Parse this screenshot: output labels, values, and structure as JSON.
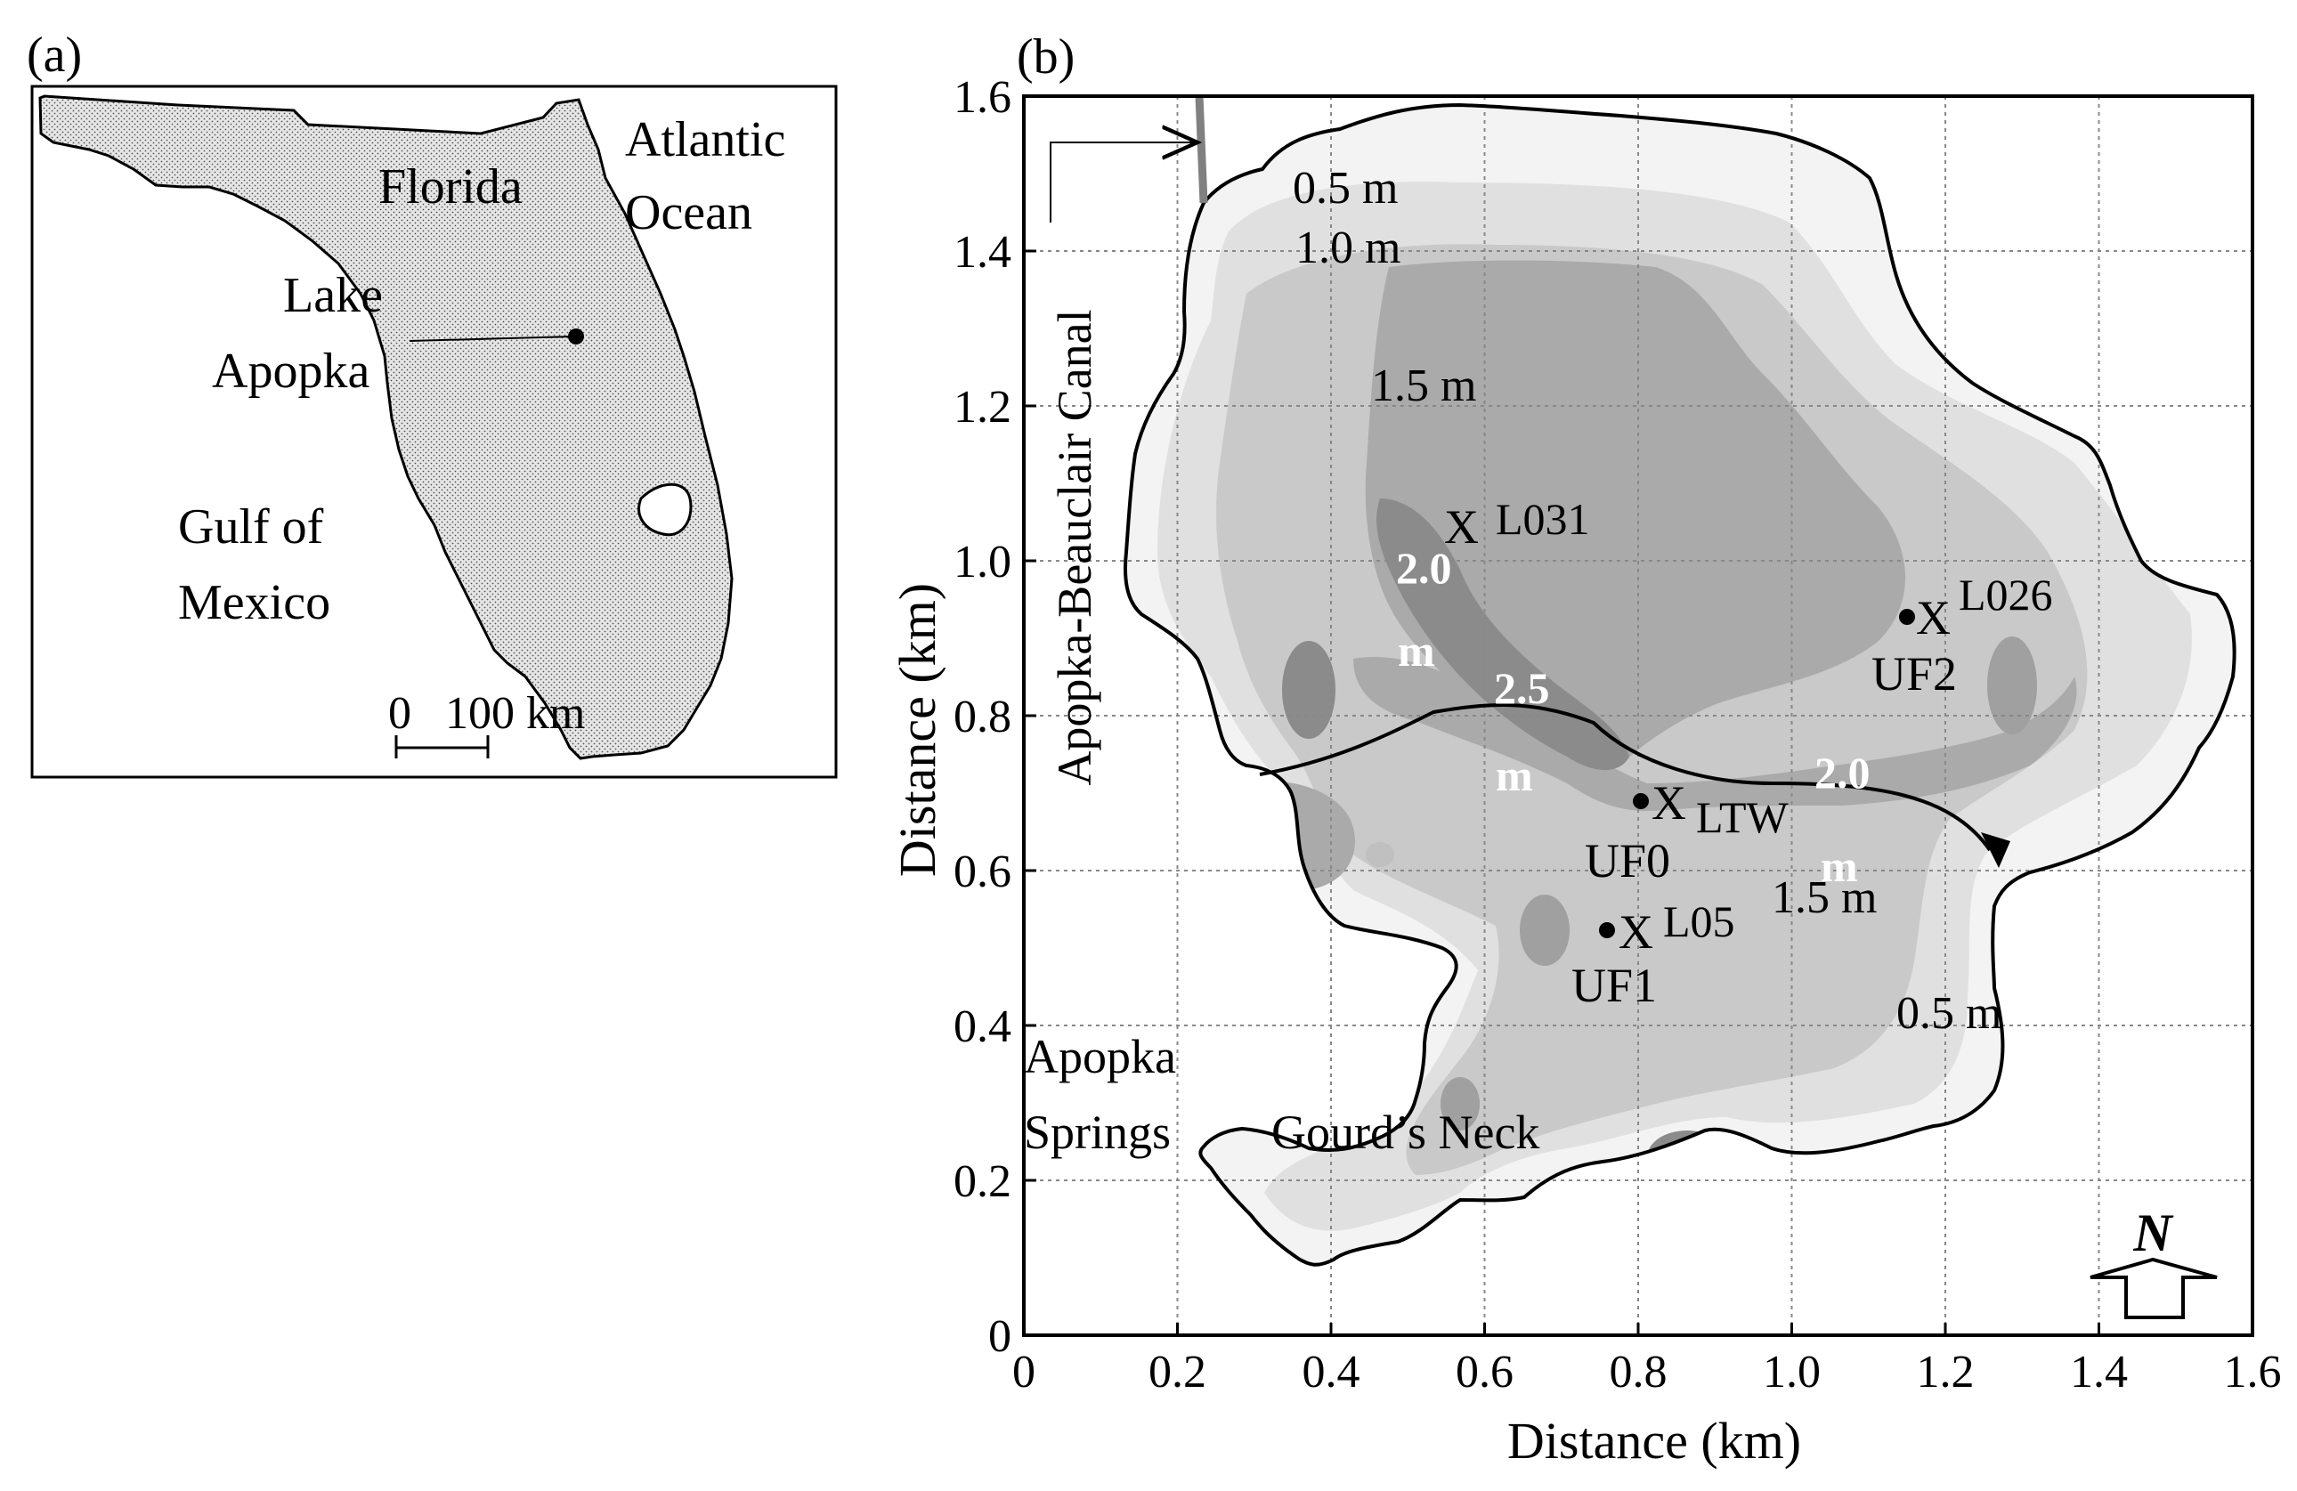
{
  "panel_a": {
    "label": "(a)",
    "state_label": "Florida",
    "ocean_label_line1": "Atlantic",
    "ocean_label_line2": "Ocean",
    "gulf_label_line1": "Gulf of",
    "gulf_label_line2": "Mexico",
    "lake_label_line1": "Lake",
    "lake_label_line2": "Apopka",
    "scale_zero": "0",
    "scale_value": "100 km"
  },
  "panel_b": {
    "label": "(b)",
    "canal_label": "Apopka-Beauclair Canal",
    "springs_label_line1": "Apopka",
    "springs_label_line2": "Springs",
    "neck_label": "Gourd’s Neck",
    "north_label": "N",
    "contour_labels": [
      {
        "text": "0.5 m",
        "color": "black"
      },
      {
        "text": "1.0 m",
        "color": "black"
      },
      {
        "text": "1.5 m",
        "color": "black"
      },
      {
        "text": "2.0",
        "color": "white"
      },
      {
        "text": "m",
        "color": "white"
      },
      {
        "text": "2.5",
        "color": "white"
      },
      {
        "text": "m",
        "color": "white"
      },
      {
        "text": "2.0",
        "color": "white"
      },
      {
        "text": "m",
        "color": "white"
      },
      {
        "text": "1.5 m",
        "color": "black"
      },
      {
        "text": "0.5 m",
        "color": "black"
      }
    ],
    "stations": [
      {
        "marker": "X",
        "name": "L031",
        "x_km": 0.58,
        "y_km": 1.04
      },
      {
        "marker": "X",
        "name": "L026",
        "x_km": 1.2,
        "y_km": 0.93
      },
      {
        "marker": "X",
        "name": "LTW",
        "sub": "UF0",
        "x_km": 0.83,
        "y_km": 0.69
      },
      {
        "marker": "X",
        "name": "L05",
        "sub": "UF1",
        "x_km": 0.8,
        "y_km": 0.52
      }
    ],
    "uf_points": [
      {
        "name": "UF2",
        "x_km": 1.15,
        "y_km": 0.93
      },
      {
        "name": "UF0",
        "x_km": 0.81,
        "y_km": 0.69
      },
      {
        "name": "UF1",
        "x_km": 0.76,
        "y_km": 0.52
      }
    ]
  },
  "chart_data": {
    "type": "heatmap",
    "xlabel": "Distance (km)",
    "ylabel": "Distance (km)",
    "xlim": [
      0,
      1.6
    ],
    "ylim": [
      0,
      1.6
    ],
    "x_ticks": [
      "0",
      "0.2",
      "0.4",
      "0.6",
      "0.8",
      "1.0",
      "1.2",
      "1.4",
      "1.6"
    ],
    "y_ticks": [
      "0",
      "0.2",
      "0.4",
      "0.6",
      "0.8",
      "1.0",
      "1.2",
      "1.4",
      "1.6"
    ],
    "grid": true,
    "contour_levels_m": [
      0.5,
      1.0,
      1.5,
      2.0,
      2.5
    ]
  },
  "colors": {
    "shore": "#000000",
    "depth_0_5": "#f1f1f1",
    "depth_1_0": "#dddddd",
    "depth_1_5": "#c6c6c6",
    "depth_2_0": "#a9a9a9",
    "depth_2_5": "#8a8a8a",
    "canal": "#808080",
    "grid": "#888888"
  }
}
